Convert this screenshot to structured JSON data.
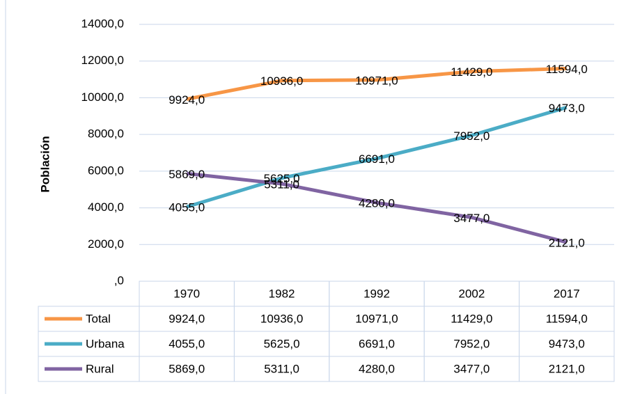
{
  "chart_data": {
    "type": "line",
    "y_label": "Población",
    "categories": [
      "1970",
      "1982",
      "1992",
      "2002",
      "2017"
    ],
    "series": [
      {
        "name": "Total",
        "color": "#f79646",
        "values": [
          9924,
          10936,
          10971,
          11429,
          11594
        ],
        "value_labels": [
          "9924,0",
          "10936,0",
          "10971,0",
          "11429,0",
          "11594,0"
        ]
      },
      {
        "name": "Urbana",
        "color": "#4bacc6",
        "values": [
          4055,
          5625,
          6691,
          7952,
          9473
        ],
        "value_labels": [
          "4055,0",
          "5625,0",
          "6691,0",
          "7952,0",
          "9473,0"
        ]
      },
      {
        "name": "Rural",
        "color": "#8064a2",
        "values": [
          5869,
          5311,
          4280,
          3477,
          2121
        ],
        "value_labels": [
          "5869,0",
          "5311,0",
          "4280,0",
          "3477,0",
          "2121,0"
        ]
      }
    ],
    "ylim": [
      0,
      14000
    ],
    "yticks": [
      {
        "value": 0,
        "label": ",0"
      },
      {
        "value": 2000,
        "label": "2000,0"
      },
      {
        "value": 4000,
        "label": "4000,0"
      },
      {
        "value": 6000,
        "label": "6000,0"
      },
      {
        "value": 8000,
        "label": "8000,0"
      },
      {
        "value": 10000,
        "label": "10000,0"
      },
      {
        "value": 12000,
        "label": "12000,0"
      },
      {
        "value": 14000,
        "label": "14000,0"
      }
    ],
    "grid": true
  }
}
